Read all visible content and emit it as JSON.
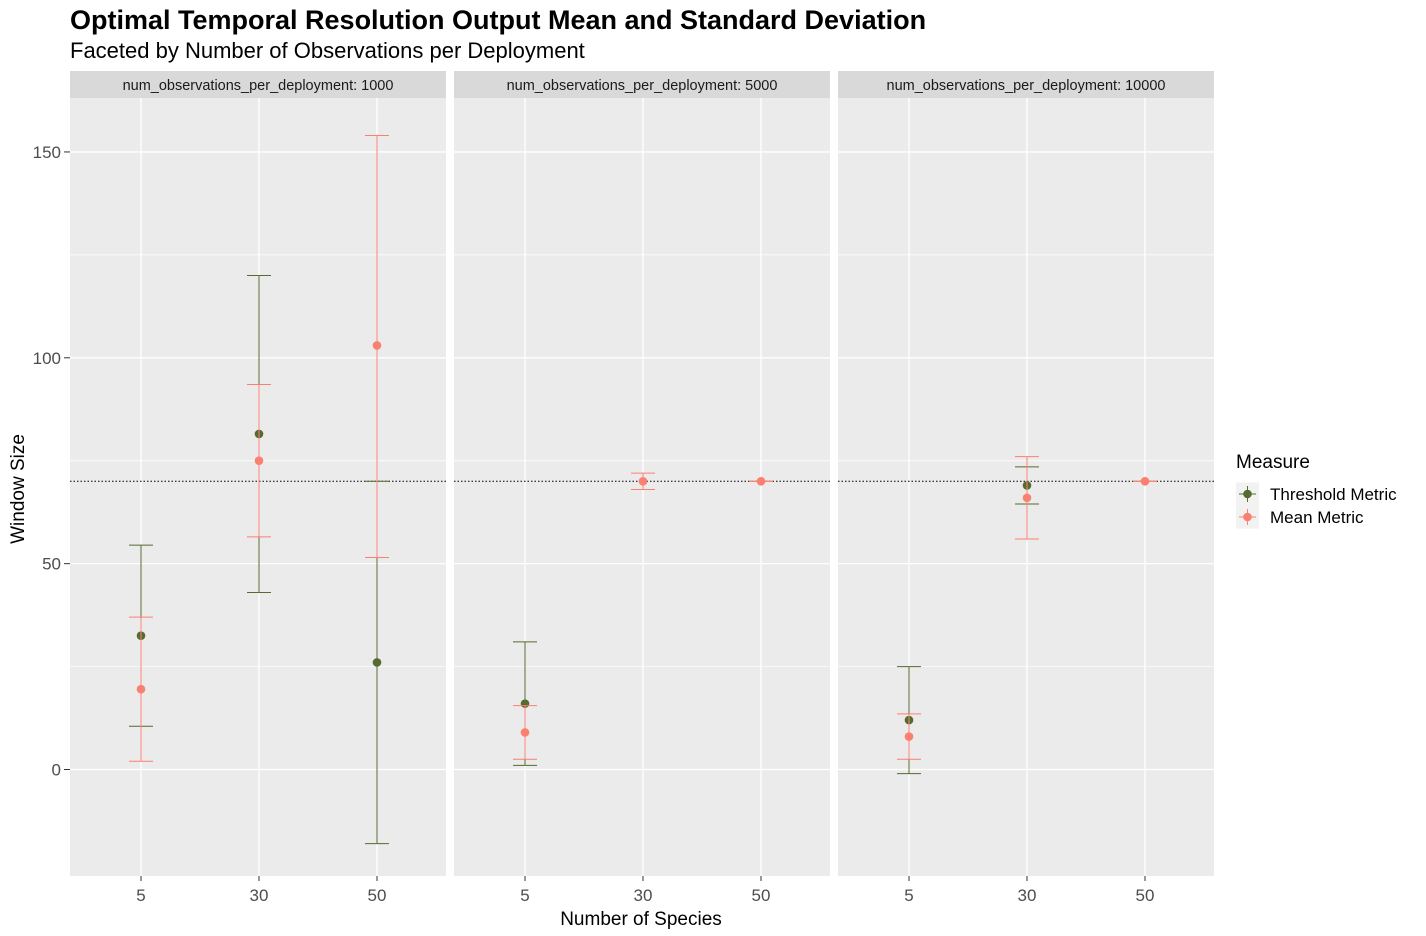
{
  "chart_data": {
    "type": "scatter",
    "title": "Optimal Temporal Resolution Output Mean and Standard Deviation",
    "subtitle": "Faceted by Number of Observations per Deployment",
    "xlabel": "Number of Species",
    "ylabel": "Window Size",
    "categories": [
      "5",
      "30",
      "50"
    ],
    "yticks": [
      0,
      50,
      100,
      150
    ],
    "ylim": [
      -26,
      162
    ],
    "reference_line": 70,
    "legend": {
      "title": "Measure",
      "position": "right",
      "entries": [
        {
          "name": "Threshold Metric",
          "color": "#556B2F"
        },
        {
          "name": "Mean Metric",
          "color": "#FA8072"
        }
      ]
    },
    "facets": [
      {
        "label": "num_observations_per_deployment: 1000",
        "series": [
          {
            "name": "Threshold Metric",
            "color": "#556B2F",
            "points": [
              {
                "x": "5",
                "mean": 32.5,
                "low": 10.5,
                "high": 54.5
              },
              {
                "x": "30",
                "mean": 81.5,
                "low": 43,
                "high": 120
              },
              {
                "x": "50",
                "mean": 26,
                "low": -18,
                "high": 70
              }
            ]
          },
          {
            "name": "Mean Metric",
            "color": "#FA8072",
            "points": [
              {
                "x": "5",
                "mean": 19.5,
                "low": 2,
                "high": 37
              },
              {
                "x": "30",
                "mean": 75,
                "low": 56.5,
                "high": 93.5
              },
              {
                "x": "50",
                "mean": 103,
                "low": 51.5,
                "high": 154
              }
            ]
          }
        ]
      },
      {
        "label": "num_observations_per_deployment: 5000",
        "series": [
          {
            "name": "Threshold Metric",
            "color": "#556B2F",
            "points": [
              {
                "x": "5",
                "mean": 16,
                "low": 1,
                "high": 31
              }
            ]
          },
          {
            "name": "Mean Metric",
            "color": "#FA8072",
            "points": [
              {
                "x": "5",
                "mean": 9,
                "low": 2.5,
                "high": 15.5
              },
              {
                "x": "30",
                "mean": 70,
                "low": 68,
                "high": 72
              },
              {
                "x": "50",
                "mean": 70,
                "low": 70,
                "high": 70
              }
            ]
          }
        ]
      },
      {
        "label": "num_observations_per_deployment: 10000",
        "series": [
          {
            "name": "Threshold Metric",
            "color": "#556B2F",
            "points": [
              {
                "x": "5",
                "mean": 12,
                "low": -1,
                "high": 25
              },
              {
                "x": "30",
                "mean": 69,
                "low": 64.5,
                "high": 73.5
              }
            ]
          },
          {
            "name": "Mean Metric",
            "color": "#FA8072",
            "points": [
              {
                "x": "5",
                "mean": 8,
                "low": 2.5,
                "high": 13.5
              },
              {
                "x": "30",
                "mean": 66,
                "low": 56,
                "high": 76
              },
              {
                "x": "50",
                "mean": 70,
                "low": 70,
                "high": 70
              }
            ]
          }
        ]
      }
    ]
  }
}
